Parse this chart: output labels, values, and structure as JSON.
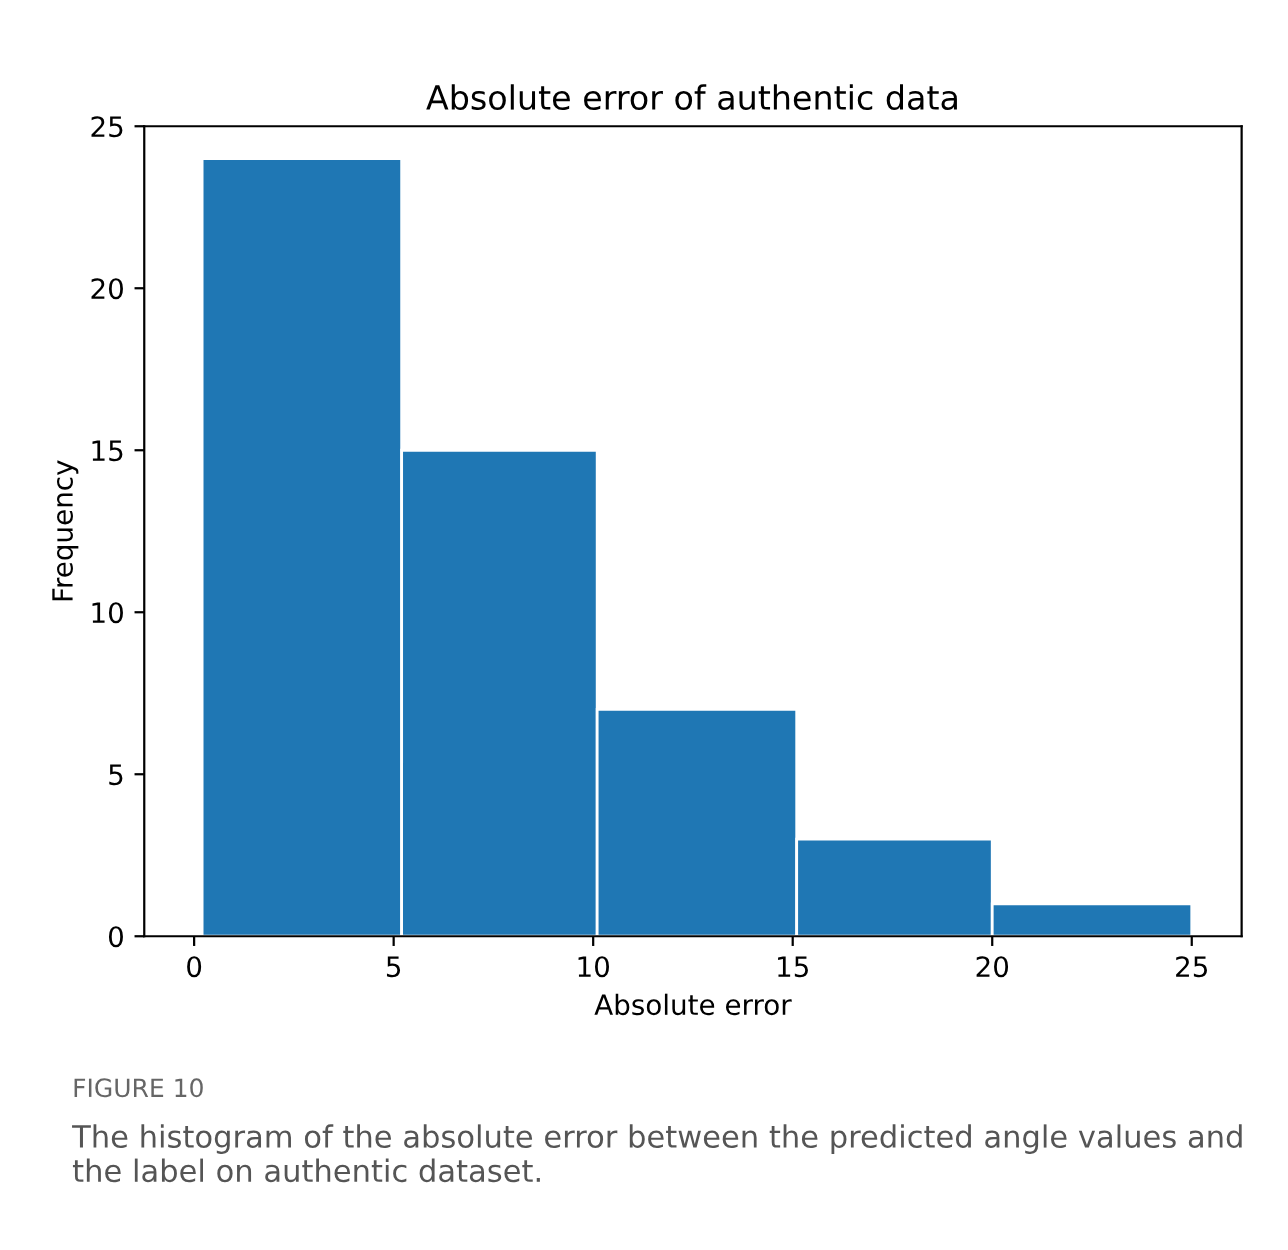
{
  "chart_data": {
    "type": "histogram",
    "title": "Absolute error of authentic data",
    "xlabel": "Absolute error",
    "ylabel": "Frequency",
    "bins": [
      0.2,
      5.2,
      10.1,
      15.1,
      20.0,
      25.0
    ],
    "values": [
      24,
      15,
      7,
      3,
      1
    ],
    "color": "#1f77b4",
    "xlim": [
      -1.25,
      26.25
    ],
    "ylim": [
      0,
      25
    ],
    "xticks": [
      0,
      5,
      10,
      15,
      20,
      25
    ],
    "yticks": [
      0,
      5,
      10,
      15,
      20,
      25
    ],
    "grid": false,
    "annotations": [
      "FIGURE 10",
      "The histogram of the absolute error between the predicted angle values and the label on authentic dataset."
    ]
  }
}
